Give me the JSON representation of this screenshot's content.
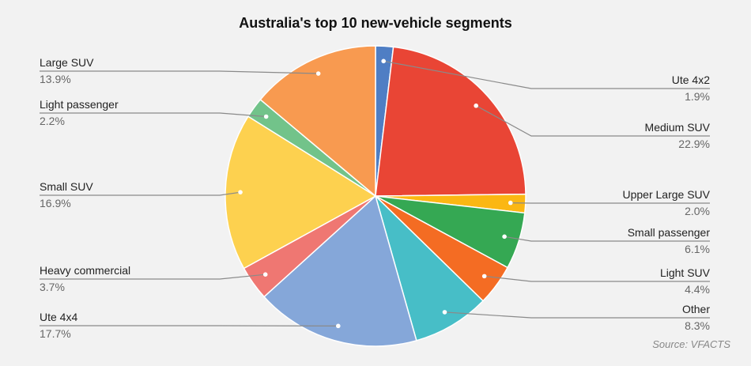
{
  "chart_data": {
    "type": "pie",
    "title": "Australia's top 10 new-vehicle segments",
    "source": "Source: VFACTS",
    "slices": [
      {
        "label": "Ute 4x2",
        "value": 1.9,
        "pct_label": "1.9%",
        "color": "#4f7ec4"
      },
      {
        "label": "Medium SUV",
        "value": 22.9,
        "pct_label": "22.9%",
        "color": "#e94535"
      },
      {
        "label": "Upper Large SUV",
        "value": 2.0,
        "pct_label": "2.0%",
        "color": "#fbb713"
      },
      {
        "label": "Small passenger",
        "value": 6.1,
        "pct_label": "6.1%",
        "color": "#35a853"
      },
      {
        "label": "Light SUV",
        "value": 4.4,
        "pct_label": "4.4%",
        "color": "#f46c23"
      },
      {
        "label": "Other",
        "value": 8.3,
        "pct_label": "8.3%",
        "color": "#47bec7"
      },
      {
        "label": "Ute 4x4",
        "value": 17.7,
        "pct_label": "17.7%",
        "color": "#85a7d9"
      },
      {
        "label": "Heavy commercial",
        "value": 3.7,
        "pct_label": "3.7%",
        "color": "#ef7772"
      },
      {
        "label": "Small SUV",
        "value": 16.9,
        "pct_label": "16.9%",
        "color": "#fdd14f"
      },
      {
        "label": "Light passenger",
        "value": 2.2,
        "pct_label": "2.2%",
        "color": "#72c38a"
      },
      {
        "label": "Large SUV",
        "value": 13.9,
        "pct_label": "13.9%",
        "color": "#f89a50"
      }
    ]
  }
}
